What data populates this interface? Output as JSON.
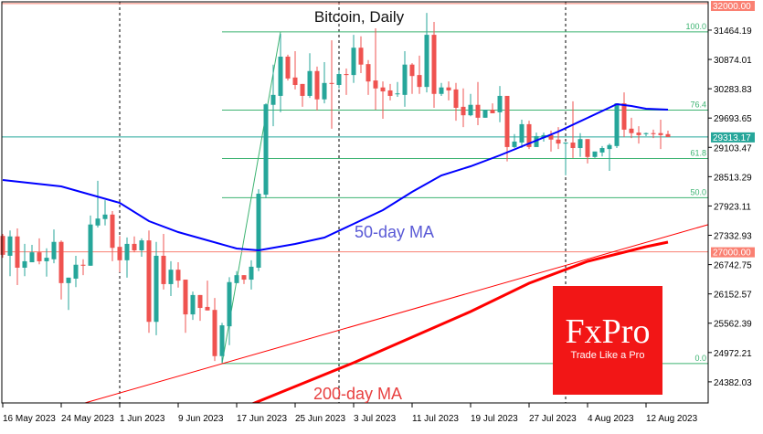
{
  "chart_data": {
    "type": "candlestick",
    "title": "Bitcoin, Daily",
    "ylim": [
      23957,
      32034
    ],
    "grid": false,
    "colors": {
      "bull": "#26a69a",
      "bear": "#ef5350",
      "ma50": "#0000ff",
      "ma200": "#ff0000",
      "trendline": "#ff0000",
      "fib": "#3cb371",
      "level": "#fa8072",
      "price": "#26a69a"
    },
    "x_tick_labels": [
      {
        "date": "2023-05-16",
        "label": "16 May 2023"
      },
      {
        "date": "2023-05-24",
        "label": "24 May 2023"
      },
      {
        "date": "2023-06-01",
        "label": "1 Jun 2023"
      },
      {
        "date": "2023-06-09",
        "label": "9 Jun 2023"
      },
      {
        "date": "2023-06-17",
        "label": "17 Jun 2023"
      },
      {
        "date": "2023-06-25",
        "label": "25 Jun 2023"
      },
      {
        "date": "2023-07-03",
        "label": "3 Jul 2023"
      },
      {
        "date": "2023-07-11",
        "label": "11 Jul 2023"
      },
      {
        "date": "2023-07-19",
        "label": "19 Jul 2023"
      },
      {
        "date": "2023-07-27",
        "label": "27 Jul 2023"
      },
      {
        "date": "2023-08-04",
        "label": "4 Aug 2023"
      },
      {
        "date": "2023-08-12",
        "label": "12 Aug 2023"
      }
    ],
    "y_ticks": [
      31464.19,
      30874.01,
      30283.83,
      29693.65,
      29103.47,
      28513.29,
      27923.11,
      27332.93,
      26742.75,
      26152.57,
      25562.39,
      24972.21,
      24382.03
    ],
    "y_tick_labels": [
      "31464.19",
      "30874.01",
      "30283.83",
      "29693.65",
      "29103.47",
      "28513.29",
      "27923.11",
      "27332.93",
      "26742.75",
      "26152.57",
      "25562.39",
      "24972.21",
      "24382.03"
    ],
    "month_separators": [
      "2023-06-01",
      "2023-07-01",
      "2023-08-01"
    ],
    "levels": [
      {
        "value": 32000,
        "label": "32000.00",
        "kind": "level"
      },
      {
        "value": 27000,
        "label": "27000.00",
        "kind": "level"
      },
      {
        "value": 29313.17,
        "label": "29313.17",
        "kind": "price"
      }
    ],
    "fibonacci": {
      "low": {
        "date": "2023-06-15",
        "value": 24750
      },
      "high": {
        "date": "2023-06-23",
        "value": 31430
      },
      "levels": [
        {
          "ratio": 0.0,
          "label": "0.0"
        },
        {
          "ratio": 0.5,
          "label": "50.0"
        },
        {
          "ratio": 0.618,
          "label": "61.8"
        },
        {
          "ratio": 0.764,
          "label": "76.4"
        },
        {
          "ratio": 1.0,
          "label": "100.0"
        }
      ]
    },
    "trendline": [
      {
        "date": "2023-06-15",
        "value": 24747
      },
      {
        "date": "2023-08-15",
        "value": 27316
      }
    ],
    "annotations": {
      "ma50": "50-day MA",
      "ma200": "200-day MA"
    },
    "candle_fields": [
      "date",
      "open",
      "high",
      "low",
      "close"
    ],
    "candles": [
      [
        "2023-05-16",
        27320,
        27360,
        26880,
        26940
      ],
      [
        "2023-05-17",
        26920,
        27430,
        26510,
        27310
      ],
      [
        "2023-05-18",
        27310,
        27470,
        26330,
        26680
      ],
      [
        "2023-05-19",
        26680,
        27160,
        26510,
        26810
      ],
      [
        "2023-05-20",
        26790,
        27140,
        26790,
        26990
      ],
      [
        "2023-05-21",
        26990,
        27270,
        26750,
        26810
      ],
      [
        "2023-05-22",
        26810,
        27070,
        26500,
        26880
      ],
      [
        "2023-05-23",
        26850,
        27450,
        26770,
        27200
      ],
      [
        "2023-05-24",
        27200,
        27230,
        26040,
        26370
      ],
      [
        "2023-05-25",
        26370,
        26480,
        25830,
        26480
      ],
      [
        "2023-05-26",
        26460,
        26920,
        26290,
        26740
      ],
      [
        "2023-05-27",
        26740,
        26850,
        26530,
        26720
      ],
      [
        "2023-05-28",
        26720,
        27730,
        26720,
        27550
      ],
      [
        "2023-05-29",
        27530,
        28430,
        27490,
        27670
      ],
      [
        "2023-05-30",
        27660,
        28040,
        27530,
        27750
      ],
      [
        "2023-05-31",
        27750,
        27820,
        26810,
        27080
      ],
      [
        "2023-06-01",
        27100,
        27320,
        26590,
        26830
      ],
      [
        "2023-06-02",
        26830,
        27290,
        26480,
        27160
      ],
      [
        "2023-06-03",
        27160,
        27310,
        26990,
        27030
      ],
      [
        "2023-06-04",
        27030,
        27270,
        26900,
        27230
      ],
      [
        "2023-06-05",
        27230,
        27430,
        25370,
        25590
      ],
      [
        "2023-06-06",
        25590,
        27200,
        25320,
        26920
      ],
      [
        "2023-06-07",
        26920,
        27360,
        26240,
        26350
      ],
      [
        "2023-06-08",
        26350,
        26810,
        26110,
        26640
      ],
      [
        "2023-06-09",
        26640,
        26790,
        26280,
        26420
      ],
      [
        "2023-06-10",
        26440,
        26440,
        25370,
        25740
      ],
      [
        "2023-06-11",
        25740,
        26200,
        25630,
        26130
      ],
      [
        "2023-06-12",
        26130,
        26130,
        25610,
        25870
      ],
      [
        "2023-06-13",
        25890,
        26420,
        25820,
        25820
      ],
      [
        "2023-06-14",
        25830,
        26070,
        24800,
        24900
      ],
      [
        "2023-06-15",
        24900,
        25570,
        24770,
        25520
      ],
      [
        "2023-06-16",
        25500,
        26490,
        25120,
        26390
      ],
      [
        "2023-06-17",
        26370,
        26610,
        26370,
        26530
      ],
      [
        "2023-06-18",
        26530,
        26530,
        26350,
        26440
      ],
      [
        "2023-06-19",
        26440,
        26830,
        26240,
        26700
      ],
      [
        "2023-06-20",
        26680,
        28260,
        26610,
        28170
      ],
      [
        "2023-06-21",
        28150,
        29990,
        28080,
        29970
      ],
      [
        "2023-06-22",
        29960,
        30770,
        29530,
        30160
      ],
      [
        "2023-06-23",
        30140,
        31390,
        29810,
        30930
      ],
      [
        "2023-06-24",
        30930,
        30970,
        30450,
        30490
      ],
      [
        "2023-06-25",
        30510,
        31040,
        30270,
        30360
      ],
      [
        "2023-06-26",
        30380,
        30380,
        29920,
        30140
      ],
      [
        "2023-06-27",
        30140,
        31000,
        30100,
        30640
      ],
      [
        "2023-06-28",
        30640,
        30730,
        29850,
        30070
      ],
      [
        "2023-06-29",
        30070,
        30820,
        29990,
        30400
      ],
      [
        "2023-06-30",
        30400,
        31260,
        29480,
        30380
      ],
      [
        "2023-07-01",
        30360,
        30650,
        30290,
        30580
      ],
      [
        "2023-07-02",
        30580,
        30690,
        30160,
        30560
      ],
      [
        "2023-07-03",
        30560,
        31370,
        30400,
        31110
      ],
      [
        "2023-07-04",
        31110,
        31340,
        30600,
        30770
      ],
      [
        "2023-07-05",
        30780,
        30860,
        30160,
        30430
      ],
      [
        "2023-07-06",
        30450,
        31500,
        29860,
        30290
      ],
      [
        "2023-07-07",
        30310,
        30430,
        29680,
        30230
      ],
      [
        "2023-07-08",
        30250,
        30380,
        30050,
        30140
      ],
      [
        "2023-07-09",
        30180,
        30420,
        30120,
        30190
      ],
      [
        "2023-07-10",
        30160,
        31040,
        29920,
        30770
      ],
      [
        "2023-07-11",
        30770,
        30800,
        30180,
        30540
      ],
      [
        "2023-07-12",
        30560,
        30950,
        30180,
        30320
      ],
      [
        "2023-07-13",
        30320,
        31810,
        30210,
        31370
      ],
      [
        "2023-07-14",
        31370,
        31630,
        29900,
        30180
      ],
      [
        "2023-07-15",
        30180,
        30400,
        30140,
        30310
      ],
      [
        "2023-07-16",
        30310,
        30430,
        30050,
        30250
      ],
      [
        "2023-07-17",
        30270,
        30400,
        29640,
        29900
      ],
      [
        "2023-07-18",
        29920,
        30290,
        29510,
        29750
      ],
      [
        "2023-07-19",
        29750,
        30180,
        29730,
        29960
      ],
      [
        "2023-07-20",
        29960,
        30420,
        29550,
        29700
      ],
      [
        "2023-07-21",
        29700,
        29860,
        29700,
        29860
      ],
      [
        "2023-07-22",
        29860,
        29990,
        29790,
        29790
      ],
      [
        "2023-07-23",
        29810,
        30340,
        29610,
        30140
      ],
      [
        "2023-07-24",
        30140,
        30140,
        28820,
        29110
      ],
      [
        "2023-07-25",
        29110,
        29370,
        29090,
        29220
      ],
      [
        "2023-07-26",
        29200,
        29660,
        29090,
        29570
      ],
      [
        "2023-07-27",
        29570,
        29640,
        29070,
        29110
      ],
      [
        "2023-07-28",
        29110,
        29400,
        29110,
        29330
      ],
      [
        "2023-07-29",
        29290,
        29400,
        29220,
        29350
      ],
      [
        "2023-07-30",
        29350,
        29440,
        29020,
        29260
      ],
      [
        "2023-07-31",
        29260,
        29510,
        29070,
        29180
      ],
      [
        "2023-08-01",
        29180,
        29200,
        28540,
        29200
      ],
      [
        "2023-08-02",
        29200,
        30030,
        28890,
        29090
      ],
      [
        "2023-08-03",
        29090,
        29390,
        28910,
        29270
      ],
      [
        "2023-08-04",
        29270,
        29270,
        28780,
        28910
      ],
      [
        "2023-08-05",
        28910,
        29020,
        28890,
        29020
      ],
      [
        "2023-08-06",
        29000,
        29130,
        28920,
        29090
      ],
      [
        "2023-08-07",
        29070,
        29180,
        28630,
        29150
      ],
      [
        "2023-08-08",
        29130,
        29990,
        29090,
        29990
      ],
      [
        "2023-08-09",
        29990,
        30210,
        29310,
        29460
      ],
      [
        "2023-08-10",
        29480,
        29700,
        29290,
        29390
      ],
      [
        "2023-08-11",
        29400,
        29530,
        29180,
        29350
      ],
      [
        "2023-08-12",
        29370,
        29400,
        29330,
        29390
      ],
      [
        "2023-08-13",
        29390,
        29460,
        29290,
        29370
      ],
      [
        "2023-08-14",
        29390,
        29660,
        29070,
        29350
      ],
      [
        "2023-08-15",
        29370,
        29440,
        29310,
        29313.17
      ]
    ],
    "ma50": [
      [
        "2023-05-16",
        28446
      ],
      [
        "2023-05-24",
        28317
      ],
      [
        "2023-06-01",
        27986
      ],
      [
        "2023-06-05",
        27618
      ],
      [
        "2023-06-09",
        27397
      ],
      [
        "2023-06-13",
        27232
      ],
      [
        "2023-06-17",
        27066
      ],
      [
        "2023-06-20",
        27029
      ],
      [
        "2023-06-25",
        27158
      ],
      [
        "2023-06-29",
        27287
      ],
      [
        "2023-07-03",
        27563
      ],
      [
        "2023-07-07",
        27839
      ],
      [
        "2023-07-11",
        28207
      ],
      [
        "2023-07-15",
        28538
      ],
      [
        "2023-07-19",
        28722
      ],
      [
        "2023-07-23",
        28943
      ],
      [
        "2023-07-27",
        29183
      ],
      [
        "2023-07-31",
        29421
      ],
      [
        "2023-08-04",
        29697
      ],
      [
        "2023-08-08",
        29973
      ],
      [
        "2023-08-10",
        29937
      ],
      [
        "2023-08-12",
        29881
      ],
      [
        "2023-08-15",
        29863
      ]
    ],
    "ma200": [
      [
        "2023-06-17",
        23810
      ],
      [
        "2023-06-25",
        24288
      ],
      [
        "2023-07-03",
        24766
      ],
      [
        "2023-07-11",
        25281
      ],
      [
        "2023-07-19",
        25797
      ],
      [
        "2023-07-27",
        26367
      ],
      [
        "2023-08-04",
        26809
      ],
      [
        "2023-08-12",
        27103
      ],
      [
        "2023-08-15",
        27195
      ]
    ]
  },
  "logo": {
    "name": "FxPro",
    "tagline": "Trade Like a Pro",
    "color": "#f21616"
  }
}
